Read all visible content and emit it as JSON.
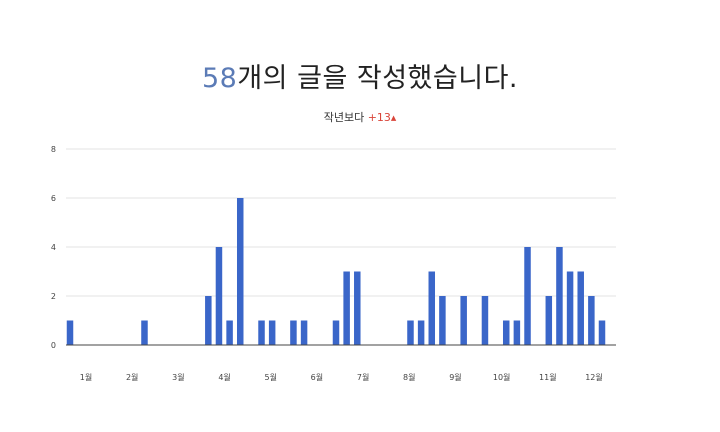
{
  "headline": {
    "count": "58",
    "suffix": "개의 글을 작성했습니다."
  },
  "comparison": {
    "label": "작년보다",
    "delta": "+13",
    "arrow": "▲"
  },
  "colors": {
    "bar": "#3a66c9",
    "accent": "#5b7bb6",
    "delta": "#d9453a",
    "grid": "#e3e3e3",
    "axis": "#444444"
  },
  "chart_data": {
    "type": "bar",
    "title": "58개의 글을 작성했습니다.",
    "subtitle": "작년보다 +13",
    "xlabel": "",
    "ylabel": "",
    "ylim": [
      0,
      8
    ],
    "y_ticks": [
      0,
      2,
      4,
      6,
      8
    ],
    "grid": true,
    "legend": "none",
    "x_tick_labels": [
      "1월",
      "2월",
      "3월",
      "4월",
      "5월",
      "6월",
      "7월",
      "8월",
      "9월",
      "10월",
      "11월",
      "12월"
    ],
    "values": [
      1,
      0,
      0,
      0,
      0,
      0,
      0,
      1,
      0,
      0,
      0,
      0,
      0,
      2,
      4,
      1,
      6,
      0,
      1,
      1,
      0,
      1,
      1,
      0,
      0,
      1,
      3,
      3,
      0,
      0,
      0,
      0,
      1,
      1,
      3,
      2,
      0,
      2,
      0,
      2,
      0,
      1,
      1,
      4,
      0,
      2,
      4,
      3,
      3,
      2,
      1
    ]
  }
}
